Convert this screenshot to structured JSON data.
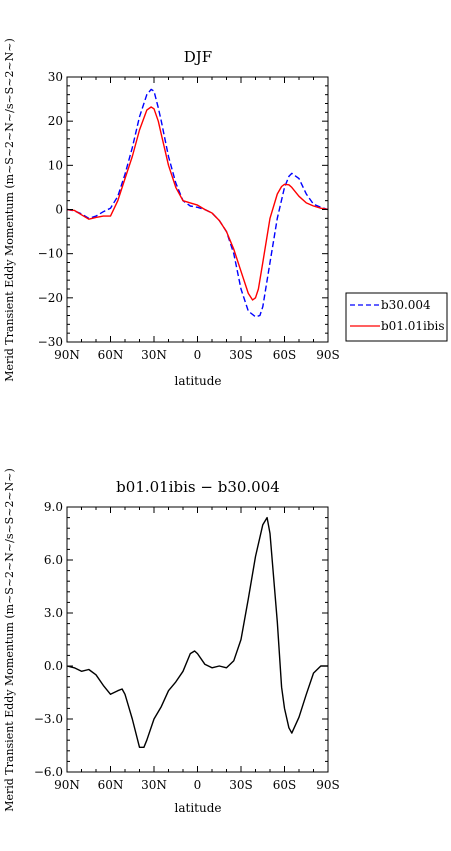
{
  "chart_data": [
    {
      "type": "line",
      "title": "DJF",
      "xlabel": "latitude",
      "ylabel": "Merid Transient Eddy Momentum (m~S~2~N~/s~S~2~N~)",
      "x_tick_labels": [
        "90N",
        "60N",
        "30N",
        "0",
        "30S",
        "60S",
        "90S"
      ],
      "x_ticks": [
        90,
        60,
        30,
        0,
        -30,
        -60,
        -90
      ],
      "xlim": [
        90,
        -90
      ],
      "ylim": [
        -30,
        30
      ],
      "y_ticks": [
        -30,
        -20,
        -10,
        0,
        10,
        20,
        30
      ],
      "y_tick_labels": [
        "−30",
        "−20",
        "−10",
        "0",
        "10",
        "20",
        "30"
      ],
      "legend": "right-outside",
      "series": [
        {
          "name": "b30.004",
          "color": "#0000ff",
          "dash": "dashed",
          "x": [
            90,
            85,
            80,
            75,
            70,
            65,
            60,
            55,
            50,
            45,
            40,
            35,
            32,
            30,
            27,
            25,
            20,
            15,
            10,
            5,
            0,
            -5,
            -10,
            -15,
            -20,
            -25,
            -30,
            -35,
            -40,
            -43,
            -45,
            -50,
            -55,
            -60,
            -63,
            -65,
            -70,
            -75,
            -80,
            -85,
            -90
          ],
          "y": [
            0,
            -0.3,
            -1,
            -2,
            -1.5,
            -0.5,
            0.3,
            3,
            8,
            14,
            21,
            26,
            27.2,
            26.8,
            23,
            20,
            12,
            6,
            2,
            0.8,
            0.5,
            0,
            -0.8,
            -2.5,
            -5,
            -10,
            -18,
            -23,
            -24.3,
            -24,
            -22,
            -12,
            -2,
            5,
            7.5,
            8.2,
            7,
            3.5,
            1.2,
            0.5,
            0
          ]
        },
        {
          "name": "b01.01ibis",
          "color": "#ff0000",
          "dash": "solid",
          "x": [
            90,
            85,
            80,
            75,
            70,
            65,
            60,
            55,
            50,
            45,
            40,
            35,
            32,
            30,
            27,
            25,
            20,
            15,
            10,
            5,
            0,
            -5,
            -10,
            -15,
            -20,
            -25,
            -30,
            -35,
            -38,
            -40,
            -42,
            -45,
            -50,
            -55,
            -58,
            -60,
            -63,
            -65,
            -70,
            -75,
            -80,
            -85,
            -90
          ],
          "y": [
            0,
            -0.2,
            -1.2,
            -2.2,
            -1.8,
            -1.5,
            -1.5,
            2,
            7,
            12,
            18,
            22.5,
            23.2,
            22.8,
            20,
            17,
            10,
            5,
            2,
            1.5,
            1,
            0,
            -0.8,
            -2.5,
            -5,
            -9,
            -14,
            -19,
            -20.5,
            -20,
            -18,
            -12,
            -2,
            3.5,
            5.2,
            5.7,
            5.6,
            5,
            3,
            1.5,
            0.8,
            0.3,
            0
          ]
        }
      ]
    },
    {
      "type": "line",
      "title": "b01.01ibis − b30.004",
      "xlabel": "latitude",
      "ylabel": "Merid Transient Eddy Momentum (m~S~2~N~/s~S~2~N~)",
      "x_tick_labels": [
        "90N",
        "60N",
        "30N",
        "0",
        "30S",
        "60S",
        "90S"
      ],
      "x_ticks": [
        90,
        60,
        30,
        0,
        -30,
        -60,
        -90
      ],
      "xlim": [
        90,
        -90
      ],
      "ylim": [
        -6,
        9
      ],
      "y_ticks": [
        -6,
        -3,
        0,
        3,
        6,
        9
      ],
      "y_tick_labels": [
        "−6.0",
        "−3.0",
        "0.0",
        "3.0",
        "6.0",
        "9.0"
      ],
      "series": [
        {
          "name": "",
          "color": "#000000",
          "dash": "solid",
          "x": [
            90,
            85,
            80,
            75,
            70,
            65,
            60,
            55,
            52,
            50,
            45,
            40,
            37,
            35,
            30,
            25,
            20,
            15,
            10,
            5,
            2,
            0,
            -5,
            -10,
            -15,
            -20,
            -25,
            -30,
            -35,
            -40,
            -45,
            -48,
            -50,
            -55,
            -58,
            -60,
            -63,
            -65,
            -70,
            -75,
            -80,
            -85,
            -88,
            -90
          ],
          "y": [
            0,
            -0.1,
            -0.3,
            -0.2,
            -0.5,
            -1.1,
            -1.6,
            -1.4,
            -1.3,
            -1.6,
            -3,
            -4.6,
            -4.6,
            -4.2,
            -3,
            -2.3,
            -1.4,
            -0.9,
            -0.3,
            0.7,
            0.85,
            0.7,
            0.1,
            -0.1,
            0,
            -0.1,
            0.3,
            1.5,
            3.8,
            6.2,
            8,
            8.4,
            7.5,
            2.5,
            -1.2,
            -2.4,
            -3.5,
            -3.8,
            -2.9,
            -1.6,
            -0.4,
            0,
            0,
            0
          ]
        }
      ]
    }
  ]
}
